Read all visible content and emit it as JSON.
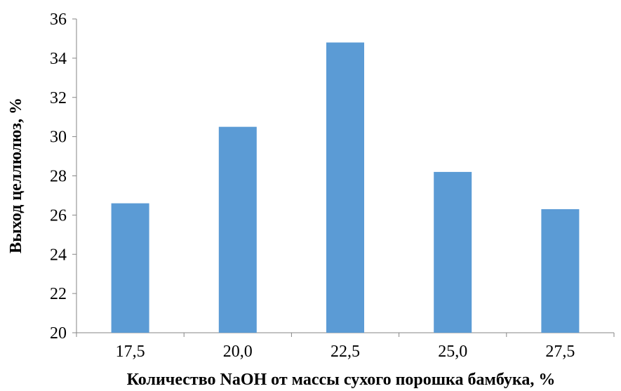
{
  "chart_data": {
    "type": "bar",
    "categories": [
      "17,5",
      "20,0",
      "22,5",
      "25,0",
      "27,5"
    ],
    "values": [
      26.6,
      30.5,
      34.8,
      28.2,
      26.3
    ],
    "title": "",
    "xlabel": "Количество NaOH от массы сухого порошка бамбука, %",
    "ylabel": "Выход  целлюлюз, %",
    "ylim": [
      20,
      36
    ],
    "yticks": [
      "20",
      "22",
      "24",
      "26",
      "28",
      "30",
      "32",
      "34",
      "36"
    ],
    "bar_color": "#5b9bd5",
    "axis_color": "#868686",
    "grid": false,
    "legend": "none"
  }
}
